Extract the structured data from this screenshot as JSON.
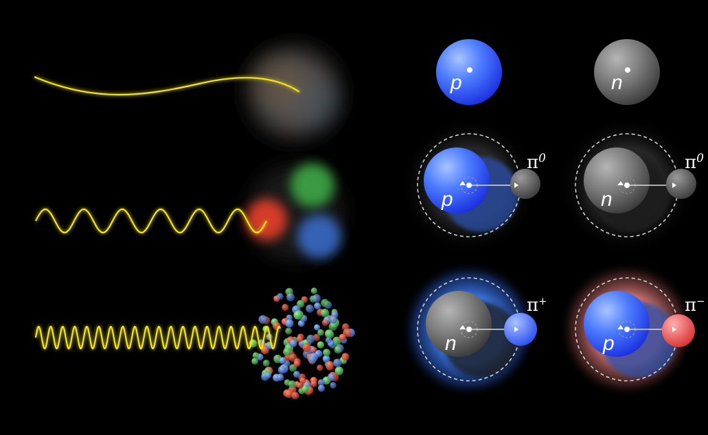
{
  "labels": {
    "proton": "p",
    "neutron": "n",
    "pion_symbol": "π",
    "pi_zero_sup": "0",
    "pi_plus_sup": "+",
    "pi_minus_sup": "−"
  },
  "colors": {
    "background": "#000000",
    "probe_wave": "#f5e61a",
    "proton": "#3a6bff",
    "neutron": "#8a8a8a",
    "pi_plus_cloud": "#3c7ae0",
    "pi_minus_cloud": "#e07070",
    "quark_red": "#e8402a",
    "quark_green": "#3fb04a",
    "quark_blue": "#3a6fd0"
  }
}
